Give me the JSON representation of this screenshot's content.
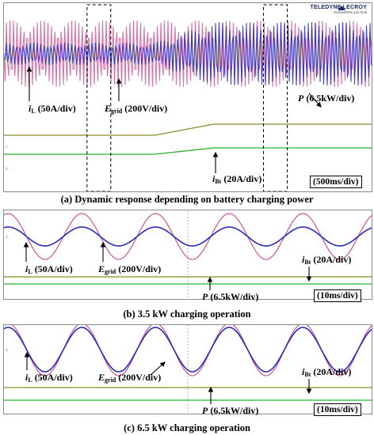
{
  "brand": {
    "name": "TELEDYNE LECROY",
    "sub": "Everywhere you look"
  },
  "colors": {
    "inductor_current": "#2a2ab4",
    "grid_voltage": "#c8468c",
    "power": "#8c8c28",
    "battery_current": "#28b428"
  },
  "chart_data": [
    {
      "type": "line",
      "caption": "(a) Dynamic response depending on battery charging power",
      "time_div": "(500ms/div)",
      "signals": [
        {
          "symbol": "i",
          "sub": "L",
          "scale": "(50A/div)"
        },
        {
          "symbol": "E",
          "sub": "grid",
          "scale": "(200V/div)"
        },
        {
          "symbol": "P",
          "sub": "",
          "scale": "(6.5kW/div)"
        },
        {
          "symbol": "i",
          "sub": "Bt",
          "scale": "(20A/div)"
        }
      ],
      "power_step": {
        "from_kw": 3.5,
        "to_kw": 6.5,
        "start_div": 4.1,
        "end_div": 5.7
      },
      "zoom_windows_div": [
        [
          2.0,
          2.6
        ],
        [
          6.8,
          7.4
        ]
      ]
    },
    {
      "type": "line",
      "caption": "(b) 3.5 kW charging operation",
      "time_div": "(10ms/div)",
      "signals": [
        {
          "symbol": "i",
          "sub": "L",
          "scale": "(50A/div)"
        },
        {
          "symbol": "E",
          "sub": "grid",
          "scale": "(200V/div)"
        },
        {
          "symbol": "i",
          "sub": "Bt",
          "scale": "(20A/div)"
        },
        {
          "symbol": "P",
          "sub": "",
          "scale": "(6.5kW/div)"
        }
      ],
      "grid_freq_hz": 60,
      "power_kw": 3.5,
      "amplitude_ratio_iL_to_Egrid": 0.55
    },
    {
      "type": "line",
      "caption": "(c) 6.5 kW charging operation",
      "time_div": "(10ms/div)",
      "signals": [
        {
          "symbol": "i",
          "sub": "L",
          "scale": "(50A/div)"
        },
        {
          "symbol": "E",
          "sub": "grid",
          "scale": "(200V/div)"
        },
        {
          "symbol": "i",
          "sub": "Bt",
          "scale": "(20A/div)"
        },
        {
          "symbol": "P",
          "sub": "",
          "scale": "(6.5kW/div)"
        }
      ],
      "grid_freq_hz": 60,
      "power_kw": 6.5,
      "amplitude_ratio_iL_to_Egrid": 1.0
    }
  ]
}
